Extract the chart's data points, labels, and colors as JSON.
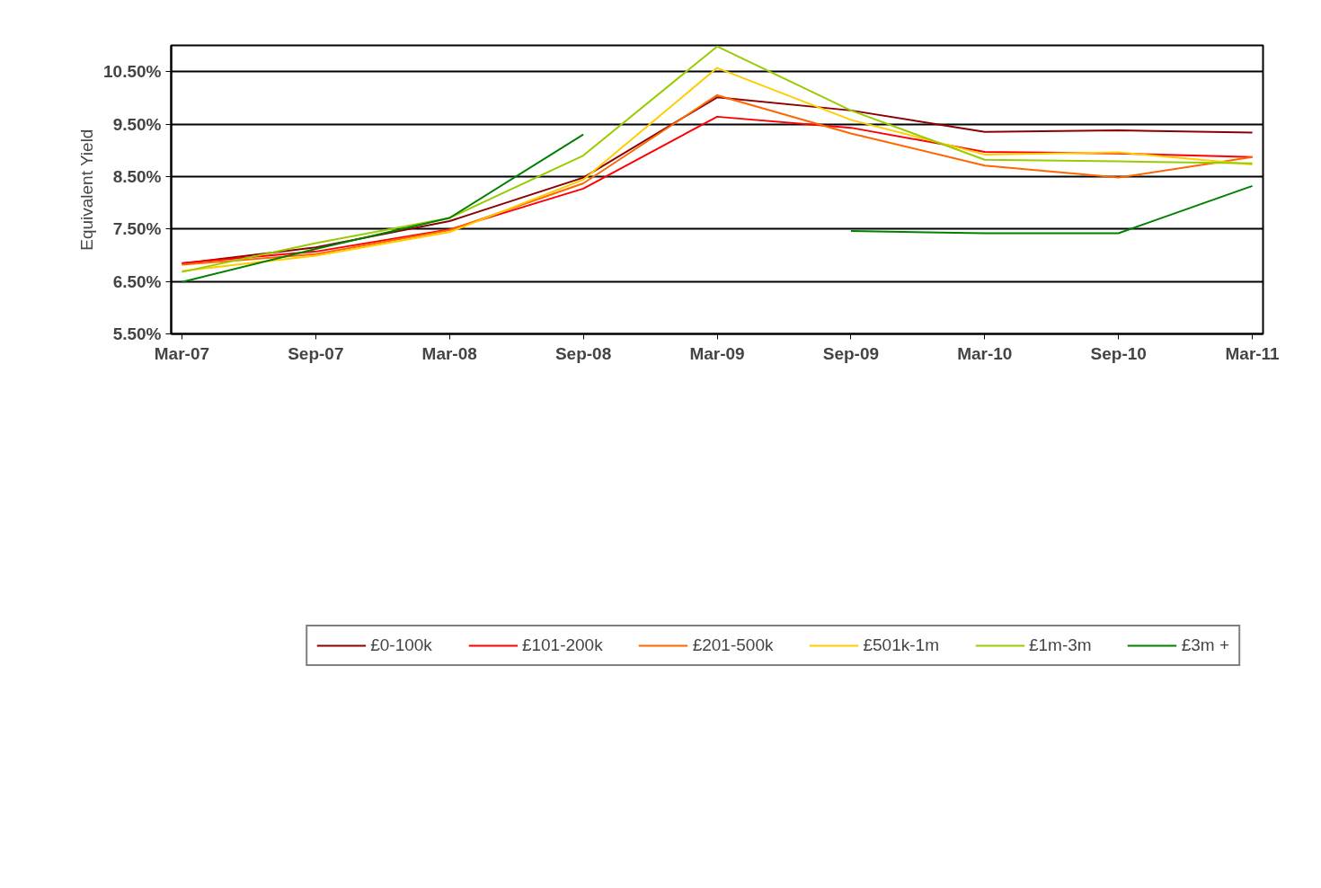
{
  "chart_data": {
    "type": "line",
    "ylabel": "Equivalent Yield",
    "categories": [
      "Mar-07",
      "Sep-07",
      "Mar-08",
      "Sep-08",
      "Mar-09",
      "Sep-09",
      "Mar-10",
      "Sep-10",
      "Mar-11"
    ],
    "ylim": [
      5.5,
      11.0
    ],
    "yticks": [
      {
        "value": 5.5,
        "label": "5.50%"
      },
      {
        "value": 6.5,
        "label": "6.50%"
      },
      {
        "value": 7.5,
        "label": "7.50%"
      },
      {
        "value": 8.5,
        "label": "8.50%"
      },
      {
        "value": 9.5,
        "label": "9.50%"
      },
      {
        "value": 10.5,
        "label": "10.50%"
      }
    ],
    "grid": "y",
    "legend": "bottom",
    "marker": "none",
    "line_style": "solid",
    "series": [
      {
        "name": "£0-100k",
        "color": "#8b0000",
        "values": [
          6.84,
          7.15,
          7.65,
          8.48,
          10.01,
          9.76,
          9.35,
          9.38,
          9.34
        ]
      },
      {
        "name": "£101-200k",
        "color": "#ff0000",
        "values": [
          6.85,
          7.07,
          7.49,
          8.27,
          9.64,
          9.43,
          8.97,
          8.94,
          8.87
        ]
      },
      {
        "name": "£201-500k",
        "color": "#ff6600",
        "values": [
          6.82,
          7.02,
          7.48,
          8.37,
          10.05,
          9.32,
          8.71,
          8.48,
          8.87
        ]
      },
      {
        "name": "£501k-1m",
        "color": "#ffcc00",
        "values": [
          6.7,
          6.99,
          7.44,
          8.44,
          10.57,
          9.58,
          8.92,
          8.96,
          8.73
        ]
      },
      {
        "name": "£1m-3m",
        "color": "#99cc00",
        "values": [
          6.68,
          7.23,
          7.71,
          8.9,
          10.98,
          9.76,
          8.82,
          8.79,
          8.75
        ]
      },
      {
        "name": "£3m +",
        "color": "#008000",
        "values": [
          6.49,
          7.12,
          7.71,
          9.3,
          null,
          7.46,
          7.42,
          7.42,
          8.32
        ]
      }
    ]
  }
}
